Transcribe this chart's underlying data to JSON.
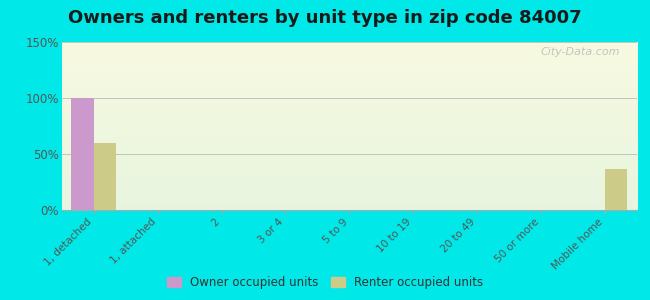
{
  "title": "Owners and renters by unit type in zip code 84007",
  "categories": [
    "1, detached",
    "1, attached",
    "2",
    "3 or 4",
    "5 to 9",
    "10 to 19",
    "20 to 49",
    "50 or more",
    "Mobile home"
  ],
  "owner_values": [
    100,
    0,
    0,
    0,
    0,
    0,
    0,
    0,
    0
  ],
  "renter_values": [
    60,
    0,
    0,
    0,
    0,
    0,
    0,
    0,
    37
  ],
  "owner_color": "#cc99cc",
  "renter_color": "#cccc88",
  "ylim": [
    0,
    150
  ],
  "yticks": [
    0,
    50,
    100,
    150
  ],
  "ytick_labels": [
    "0%",
    "50%",
    "100%",
    "150%"
  ],
  "background_outer": "#00e8e8",
  "title_fontsize": 13,
  "legend_labels": [
    "Owner occupied units",
    "Renter occupied units"
  ],
  "bar_width": 0.35,
  "watermark": "City-Data.com"
}
